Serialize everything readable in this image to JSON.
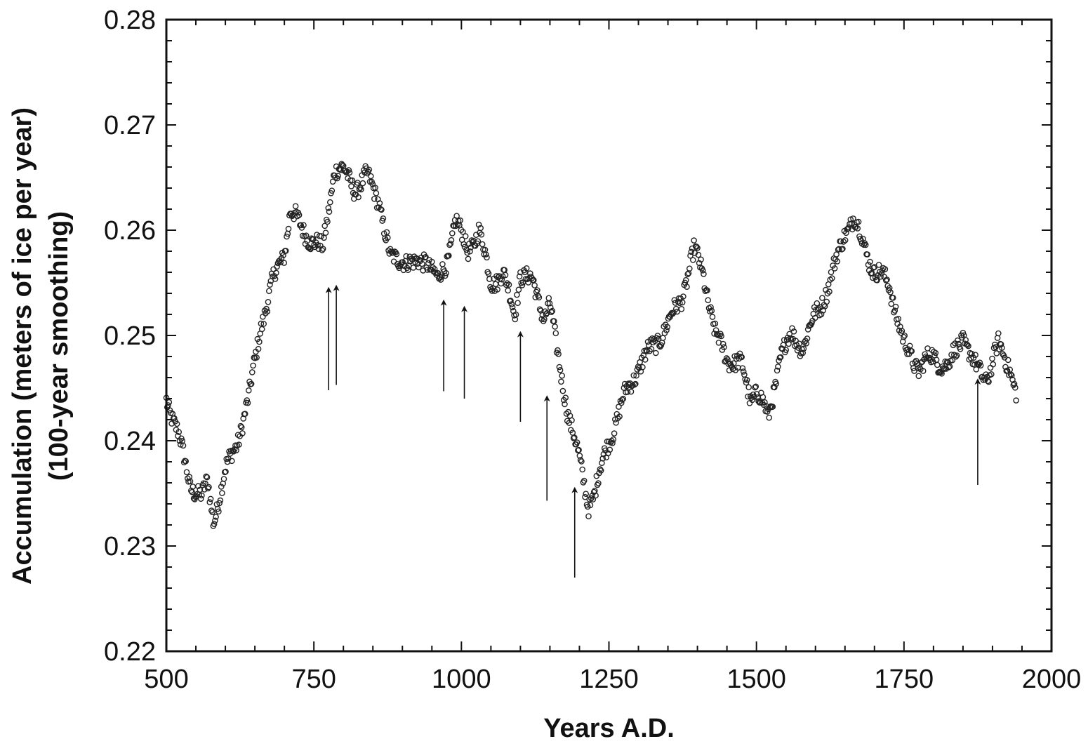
{
  "chart_data": {
    "type": "scatter",
    "xlabel": "Years A.D.",
    "ylabel": [
      "Accumulation (meters of ice per year)",
      "(100-year smoothing)"
    ],
    "xlim": [
      500,
      2000
    ],
    "ylim": [
      0.22,
      0.28
    ],
    "x_ticks": [
      "500",
      "750",
      "1000",
      "1250",
      "1500",
      "1750",
      "2000"
    ],
    "y_ticks": [
      "0.22",
      "0.23",
      "0.24",
      "0.25",
      "0.26",
      "0.27",
      "0.28"
    ],
    "grid": false,
    "marker": "open-circle",
    "series_trend": [
      [
        500,
        0.2442
      ],
      [
        520,
        0.2405
      ],
      [
        540,
        0.236
      ],
      [
        560,
        0.2345
      ],
      [
        570,
        0.236
      ],
      [
        580,
        0.2325
      ],
      [
        600,
        0.237
      ],
      [
        620,
        0.24
      ],
      [
        640,
        0.244
      ],
      [
        660,
        0.251
      ],
      [
        680,
        0.255
      ],
      [
        700,
        0.258
      ],
      [
        710,
        0.262
      ],
      [
        730,
        0.26
      ],
      [
        750,
        0.259
      ],
      [
        765,
        0.258
      ],
      [
        775,
        0.262
      ],
      [
        785,
        0.266
      ],
      [
        800,
        0.2655
      ],
      [
        820,
        0.264
      ],
      [
        840,
        0.265
      ],
      [
        860,
        0.263
      ],
      [
        880,
        0.257
      ],
      [
        900,
        0.2575
      ],
      [
        920,
        0.2565
      ],
      [
        940,
        0.2575
      ],
      [
        960,
        0.255
      ],
      [
        975,
        0.257
      ],
      [
        990,
        0.261
      ],
      [
        1010,
        0.258
      ],
      [
        1030,
        0.26
      ],
      [
        1050,
        0.255
      ],
      [
        1070,
        0.256
      ],
      [
        1090,
        0.252
      ],
      [
        1100,
        0.256
      ],
      [
        1120,
        0.255
      ],
      [
        1140,
        0.252
      ],
      [
        1150,
        0.253
      ],
      [
        1160,
        0.249
      ],
      [
        1180,
        0.243
      ],
      [
        1200,
        0.238
      ],
      [
        1215,
        0.234
      ],
      [
        1225,
        0.235
      ],
      [
        1250,
        0.24
      ],
      [
        1275,
        0.244
      ],
      [
        1300,
        0.247
      ],
      [
        1325,
        0.249
      ],
      [
        1350,
        0.251
      ],
      [
        1375,
        0.254
      ],
      [
        1395,
        0.258
      ],
      [
        1410,
        0.256
      ],
      [
        1430,
        0.25
      ],
      [
        1450,
        0.248
      ],
      [
        1475,
        0.247
      ],
      [
        1490,
        0.244
      ],
      [
        1500,
        0.245
      ],
      [
        1520,
        0.242
      ],
      [
        1540,
        0.248
      ],
      [
        1560,
        0.25
      ],
      [
        1580,
        0.249
      ],
      [
        1600,
        0.252
      ],
      [
        1625,
        0.255
      ],
      [
        1650,
        0.26
      ],
      [
        1665,
        0.261
      ],
      [
        1680,
        0.259
      ],
      [
        1700,
        0.256
      ],
      [
        1725,
        0.255
      ],
      [
        1750,
        0.249
      ],
      [
        1775,
        0.247
      ],
      [
        1800,
        0.248
      ],
      [
        1825,
        0.247
      ],
      [
        1850,
        0.25
      ],
      [
        1870,
        0.247
      ],
      [
        1890,
        0.246
      ],
      [
        1910,
        0.249
      ],
      [
        1930,
        0.247
      ],
      [
        1940,
        0.2445
      ]
    ],
    "point_spacing_years": 1.5,
    "annotations": [
      {
        "type": "arrow",
        "x": 775,
        "y_tail": 0.2448,
        "y_head": 0.2545
      },
      {
        "type": "arrow",
        "x": 788,
        "y_tail": 0.2453,
        "y_head": 0.2547
      },
      {
        "type": "arrow",
        "x": 970,
        "y_tail": 0.2447,
        "y_head": 0.2533
      },
      {
        "type": "arrow",
        "x": 1005,
        "y_tail": 0.244,
        "y_head": 0.2527
      },
      {
        "type": "arrow",
        "x": 1100,
        "y_tail": 0.2418,
        "y_head": 0.2503
      },
      {
        "type": "arrow",
        "x": 1145,
        "y_tail": 0.2343,
        "y_head": 0.2442
      },
      {
        "type": "arrow",
        "x": 1192,
        "y_tail": 0.227,
        "y_head": 0.2355
      },
      {
        "type": "arrow",
        "x": 1875,
        "y_tail": 0.2358,
        "y_head": 0.2458
      }
    ]
  }
}
